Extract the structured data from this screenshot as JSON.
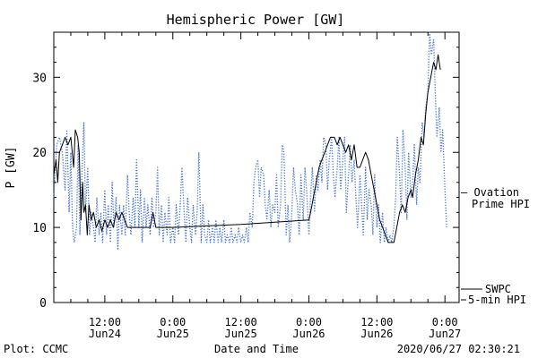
{
  "chart_data": {
    "type": "line",
    "title": "Hemispheric Power [GW]",
    "xlabel": "Date and Time",
    "ylabel": "P [GW]",
    "ylim": [
      0,
      36
    ],
    "y_ticks": [
      0,
      10,
      20,
      30
    ],
    "x_ticks": [
      {
        "hour": 12,
        "top": "12:00",
        "bottom": "Jun24"
      },
      {
        "hour": 24,
        "top": "0:00",
        "bottom": "Jun25"
      },
      {
        "hour": 36,
        "top": "12:00",
        "bottom": "Jun25"
      },
      {
        "hour": 48,
        "top": "0:00",
        "bottom": "Jun26"
      },
      {
        "hour": 60,
        "top": "12:00",
        "bottom": "Jun26"
      },
      {
        "hour": 72,
        "top": "0:00",
        "bottom": "Jun27"
      }
    ],
    "xlim_hours_from_jun24_0000": [
      3,
      74.5
    ],
    "series": [
      {
        "name": "SWPC 5-min HPI",
        "color": "#000000",
        "style": "solid",
        "points": [
          [
            3.0,
            17
          ],
          [
            3.4,
            19
          ],
          [
            3.7,
            16
          ],
          [
            4.0,
            20
          ],
          [
            4.5,
            21
          ],
          [
            5.0,
            22
          ],
          [
            5.5,
            21
          ],
          [
            6.0,
            22
          ],
          [
            6.5,
            18
          ],
          [
            6.8,
            23
          ],
          [
            7.2,
            22
          ],
          [
            7.5,
            20
          ],
          [
            7.8,
            11
          ],
          [
            8.1,
            16
          ],
          [
            8.3,
            12
          ],
          [
            8.6,
            13
          ],
          [
            8.9,
            9
          ],
          [
            9.2,
            13
          ],
          [
            9.6,
            11
          ],
          [
            10.0,
            12
          ],
          [
            10.5,
            10
          ],
          [
            11.0,
            11
          ],
          [
            11.5,
            9.5
          ],
          [
            12.0,
            11
          ],
          [
            12.5,
            10
          ],
          [
            13.0,
            11
          ],
          [
            13.5,
            10
          ],
          [
            14.0,
            12
          ],
          [
            14.5,
            11
          ],
          [
            15.0,
            12
          ],
          [
            15.5,
            11
          ],
          [
            16.0,
            10
          ],
          [
            17.0,
            10
          ],
          [
            18.0,
            10
          ],
          [
            19.0,
            10
          ],
          [
            20.0,
            10
          ],
          [
            20.5,
            12
          ],
          [
            21.0,
            10
          ],
          [
            22.0,
            10
          ],
          [
            24.0,
            10
          ],
          [
            30.0,
            10.2
          ],
          [
            36.0,
            10.4
          ],
          [
            42.0,
            10.7
          ],
          [
            48.0,
            11
          ],
          [
            48.3,
            12
          ],
          [
            48.8,
            14
          ],
          [
            49.3,
            16
          ],
          [
            49.8,
            18
          ],
          [
            50.3,
            19
          ],
          [
            50.8,
            20
          ],
          [
            51.3,
            21
          ],
          [
            51.8,
            22
          ],
          [
            52.5,
            22
          ],
          [
            53.0,
            21
          ],
          [
            53.5,
            22
          ],
          [
            54.0,
            21
          ],
          [
            54.5,
            20
          ],
          [
            55.0,
            21
          ],
          [
            55.5,
            19
          ],
          [
            56.0,
            21
          ],
          [
            56.5,
            18
          ],
          [
            57.0,
            18
          ],
          [
            57.5,
            19
          ],
          [
            58.0,
            20
          ],
          [
            58.5,
            19
          ],
          [
            59.0,
            17
          ],
          [
            59.5,
            15
          ],
          [
            60.0,
            13
          ],
          [
            60.5,
            11
          ],
          [
            61.0,
            10
          ],
          [
            61.5,
            9
          ],
          [
            62.0,
            8
          ],
          [
            63.0,
            8
          ],
          [
            63.5,
            10
          ],
          [
            64.0,
            12
          ],
          [
            64.5,
            13
          ],
          [
            65.0,
            12
          ],
          [
            65.5,
            14
          ],
          [
            66.0,
            15
          ],
          [
            66.3,
            14
          ],
          [
            66.8,
            17
          ],
          [
            67.3,
            19
          ],
          [
            67.8,
            22
          ],
          [
            68.2,
            21
          ],
          [
            68.6,
            25
          ],
          [
            69.0,
            28
          ],
          [
            69.5,
            30
          ],
          [
            70.0,
            32
          ],
          [
            70.4,
            31
          ],
          [
            70.8,
            33
          ],
          [
            71.2,
            31
          ]
        ]
      },
      {
        "name": "Ovation Prime HPI",
        "color": "#3f6fd0",
        "style": "dotted",
        "points": [
          [
            3.0,
            14
          ],
          [
            3.5,
            21
          ],
          [
            4.0,
            22
          ],
          [
            4.5,
            20
          ],
          [
            5.0,
            15
          ],
          [
            5.3,
            23
          ],
          [
            5.7,
            12
          ],
          [
            6.0,
            20
          ],
          [
            6.3,
            10
          ],
          [
            6.6,
            8
          ],
          [
            7.0,
            10
          ],
          [
            7.3,
            21
          ],
          [
            7.6,
            9
          ],
          [
            8.0,
            18
          ],
          [
            8.3,
            24
          ],
          [
            8.6,
            12
          ],
          [
            9.0,
            18
          ],
          [
            9.3,
            9
          ],
          [
            9.6,
            12
          ],
          [
            10.0,
            10
          ],
          [
            10.3,
            8
          ],
          [
            10.6,
            14
          ],
          [
            11.0,
            9
          ],
          [
            11.3,
            12
          ],
          [
            11.6,
            8
          ],
          [
            12.0,
            15
          ],
          [
            12.3,
            9
          ],
          [
            12.6,
            13
          ],
          [
            13.0,
            8
          ],
          [
            13.3,
            16
          ],
          [
            13.6,
            10
          ],
          [
            14.0,
            14
          ],
          [
            14.3,
            7
          ],
          [
            14.6,
            13
          ],
          [
            15.0,
            9
          ],
          [
            15.3,
            13
          ],
          [
            15.6,
            9
          ],
          [
            16.0,
            17
          ],
          [
            16.3,
            12
          ],
          [
            16.6,
            9
          ],
          [
            17.0,
            14
          ],
          [
            17.3,
            10
          ],
          [
            17.6,
            19
          ],
          [
            18.0,
            10
          ],
          [
            18.3,
            15
          ],
          [
            18.6,
            8
          ],
          [
            19.0,
            14
          ],
          [
            19.3,
            10
          ],
          [
            19.6,
            13
          ],
          [
            20.0,
            9
          ],
          [
            20.3,
            14
          ],
          [
            20.6,
            10
          ],
          [
            21.0,
            12
          ],
          [
            21.3,
            18
          ],
          [
            21.6,
            9
          ],
          [
            22.0,
            13
          ],
          [
            22.3,
            8
          ],
          [
            22.6,
            12
          ],
          [
            23.0,
            9
          ],
          [
            23.3,
            14
          ],
          [
            23.6,
            8
          ],
          [
            24.0,
            10
          ],
          [
            24.3,
            8
          ],
          [
            24.6,
            13
          ],
          [
            25.0,
            9
          ],
          [
            25.3,
            13
          ],
          [
            25.6,
            18
          ],
          [
            26.0,
            12
          ],
          [
            26.3,
            8
          ],
          [
            26.6,
            14
          ],
          [
            27.0,
            10
          ],
          [
            27.3,
            8
          ],
          [
            27.6,
            13
          ],
          [
            28.0,
            9
          ],
          [
            28.3,
            12
          ],
          [
            28.6,
            20
          ],
          [
            29.0,
            8
          ],
          [
            29.3,
            13
          ],
          [
            29.6,
            9
          ],
          [
            30.0,
            8
          ],
          [
            30.3,
            11
          ],
          [
            30.6,
            8
          ],
          [
            31.0,
            10
          ],
          [
            31.3,
            8
          ],
          [
            31.6,
            11
          ],
          [
            32.0,
            8
          ],
          [
            32.3,
            10
          ],
          [
            32.6,
            8
          ],
          [
            33.0,
            11
          ],
          [
            33.3,
            8
          ],
          [
            33.6,
            9
          ],
          [
            34.0,
            8
          ],
          [
            34.3,
            10
          ],
          [
            34.6,
            8
          ],
          [
            35.0,
            9
          ],
          [
            35.3,
            8
          ],
          [
            35.6,
            10
          ],
          [
            36.0,
            8
          ],
          [
            36.3,
            9
          ],
          [
            36.6,
            8
          ],
          [
            37.0,
            10
          ],
          [
            37.3,
            8
          ],
          [
            37.6,
            12
          ],
          [
            38.0,
            10
          ],
          [
            38.3,
            16
          ],
          [
            38.6,
            18
          ],
          [
            39.0,
            19
          ],
          [
            39.3,
            14
          ],
          [
            39.6,
            18
          ],
          [
            40.0,
            17
          ],
          [
            40.3,
            13
          ],
          [
            40.6,
            11
          ],
          [
            41.0,
            15
          ],
          [
            41.3,
            10
          ],
          [
            41.6,
            13
          ],
          [
            42.0,
            12
          ],
          [
            42.3,
            17
          ],
          [
            42.6,
            10
          ],
          [
            43.0,
            13
          ],
          [
            43.3,
            21
          ],
          [
            43.6,
            20
          ],
          [
            44.0,
            9
          ],
          [
            44.3,
            13
          ],
          [
            44.6,
            8
          ],
          [
            45.0,
            12
          ],
          [
            45.3,
            18
          ],
          [
            45.6,
            15
          ],
          [
            46.0,
            13
          ],
          [
            46.3,
            9
          ],
          [
            46.6,
            17
          ],
          [
            47.0,
            11
          ],
          [
            47.3,
            18
          ],
          [
            47.6,
            15
          ],
          [
            48.0,
            9
          ],
          [
            48.3,
            14
          ],
          [
            48.6,
            18
          ],
          [
            49.0,
            12
          ],
          [
            49.3,
            17
          ],
          [
            49.6,
            15
          ],
          [
            50.0,
            19
          ],
          [
            50.3,
            16
          ],
          [
            50.6,
            22
          ],
          [
            51.0,
            21
          ],
          [
            51.3,
            15
          ],
          [
            51.6,
            19
          ],
          [
            52.0,
            22
          ],
          [
            52.3,
            17
          ],
          [
            52.6,
            14
          ],
          [
            53.0,
            18
          ],
          [
            53.3,
            22
          ],
          [
            53.6,
            15
          ],
          [
            54.0,
            19
          ],
          [
            54.3,
            22
          ],
          [
            54.6,
            12
          ],
          [
            55.0,
            17
          ],
          [
            55.3,
            21
          ],
          [
            55.6,
            16
          ],
          [
            56.0,
            19
          ],
          [
            56.3,
            14
          ],
          [
            56.6,
            10
          ],
          [
            57.0,
            17
          ],
          [
            57.3,
            13
          ],
          [
            57.6,
            9
          ],
          [
            58.0,
            18
          ],
          [
            58.3,
            11
          ],
          [
            58.6,
            15
          ],
          [
            59.0,
            13
          ],
          [
            59.3,
            9
          ],
          [
            59.6,
            17
          ],
          [
            60.0,
            10
          ],
          [
            60.3,
            13
          ],
          [
            60.6,
            8
          ],
          [
            61.0,
            12
          ],
          [
            61.3,
            8
          ],
          [
            61.6,
            10
          ],
          [
            62.0,
            8
          ],
          [
            62.3,
            9
          ],
          [
            62.6,
            8
          ],
          [
            63.0,
            10
          ],
          [
            63.3,
            14
          ],
          [
            63.6,
            22
          ],
          [
            64.0,
            17
          ],
          [
            64.3,
            12
          ],
          [
            64.6,
            23
          ],
          [
            65.0,
            18
          ],
          [
            65.3,
            11
          ],
          [
            65.6,
            20
          ],
          [
            66.0,
            14
          ],
          [
            66.3,
            16
          ],
          [
            66.6,
            21
          ],
          [
            67.0,
            13
          ],
          [
            67.3,
            18
          ],
          [
            67.6,
            16
          ],
          [
            68.0,
            24
          ],
          [
            68.3,
            22
          ],
          [
            68.6,
            26
          ],
          [
            69.0,
            28
          ],
          [
            69.3,
            36
          ],
          [
            69.6,
            33
          ],
          [
            70.0,
            35
          ],
          [
            70.3,
            28
          ],
          [
            70.6,
            22
          ],
          [
            71.0,
            26
          ],
          [
            71.3,
            20
          ],
          [
            71.6,
            23
          ],
          [
            72.0,
            15
          ],
          [
            72.3,
            10
          ]
        ]
      }
    ],
    "legend_placement": "right",
    "legend": [
      {
        "label_lines": [
          "— Ovation",
          "Prime HPI"
        ],
        "color": "#3f6fd0"
      },
      {
        "label_lines": [
          "SWPC",
          "5-min HPI"
        ],
        "color": "#000000"
      }
    ]
  },
  "footer": {
    "plot_label": "Plot: CCMC",
    "timestamp": "2020/06/27 02:30:21"
  }
}
